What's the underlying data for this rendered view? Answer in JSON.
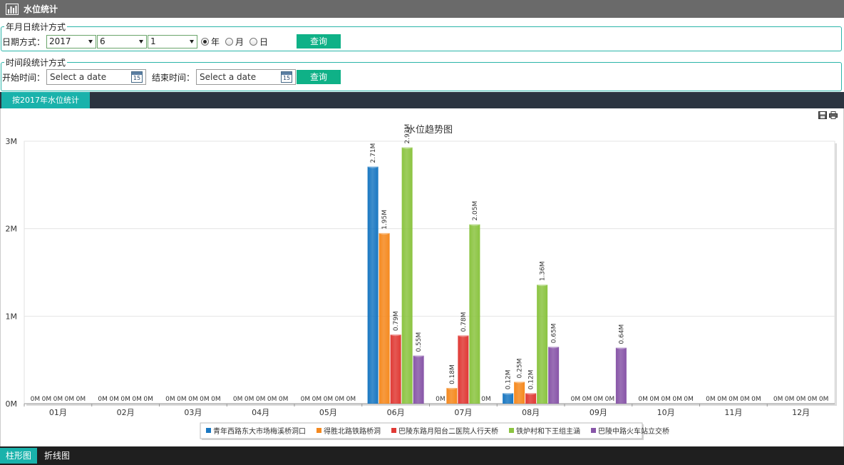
{
  "header": {
    "title": "水位统计",
    "icon": "bar-chart-icon"
  },
  "ymd_section": {
    "legend": "年月日统计方式",
    "date_mode_label": "日期方式：",
    "year_value": "2017",
    "month_value": "6",
    "day_value": "1",
    "radios": [
      {
        "label": "年",
        "checked": true
      },
      {
        "label": "月",
        "checked": false
      },
      {
        "label": "日",
        "checked": false
      }
    ],
    "query_label": "查询"
  },
  "range_section": {
    "legend": "时间段统计方式",
    "start_label": "开始时间：",
    "start_placeholder": "Select a date",
    "end_label": "结束时间：",
    "end_placeholder": "Select a date",
    "calendar_day": "15",
    "query_label": "查询"
  },
  "result_tab": {
    "label": "按2017年水位统计"
  },
  "bottom_tabs": [
    {
      "label": "柱形图",
      "active": true
    },
    {
      "label": "折线图",
      "active": false
    }
  ],
  "chart_tools": [
    "save-icon",
    "print-icon"
  ],
  "colors": {
    "titlebar": "#6a6a6a",
    "accent": "#19b2ab",
    "button": "#0fb187",
    "series": [
      "#1a78c2",
      "#f5891e",
      "#e03a35",
      "#8bc441",
      "#8856a8"
    ]
  },
  "chart_data": {
    "type": "bar",
    "title": "水位趋势图",
    "categories": [
      "01月",
      "02月",
      "03月",
      "04月",
      "05月",
      "06月",
      "07月",
      "08月",
      "09月",
      "10月",
      "11月",
      "12月"
    ],
    "series": [
      {
        "name": "青年西路东大市场梅溪桥洞口",
        "values": [
          0,
          0,
          0,
          0,
          0,
          2.71,
          0,
          0.12,
          0,
          0,
          0,
          0
        ]
      },
      {
        "name": "得胜北路铁路桥洞",
        "values": [
          0,
          0,
          0,
          0,
          0,
          1.95,
          0.18,
          0.25,
          0,
          0,
          0,
          0
        ]
      },
      {
        "name": "巴陵东路月阳台二医院人行天桥",
        "values": [
          0,
          0,
          0,
          0,
          0,
          0.79,
          0.78,
          0.12,
          0,
          0,
          0,
          0
        ]
      },
      {
        "name": "铁炉村和下王组主涵",
        "values": [
          0,
          0,
          0,
          0,
          0,
          2.93,
          2.05,
          1.36,
          0,
          0,
          0,
          0
        ]
      },
      {
        "name": "巴陵中路火车站立交桥",
        "values": [
          0,
          0,
          0,
          0,
          0,
          0.55,
          0,
          0.65,
          0.64,
          0,
          0,
          0
        ]
      }
    ],
    "value_suffix": "M",
    "yticks": [
      "0M",
      "1M",
      "2M",
      "3M"
    ],
    "ylim": [
      0,
      3
    ],
    "grid": true,
    "legend_position": "bottom"
  }
}
